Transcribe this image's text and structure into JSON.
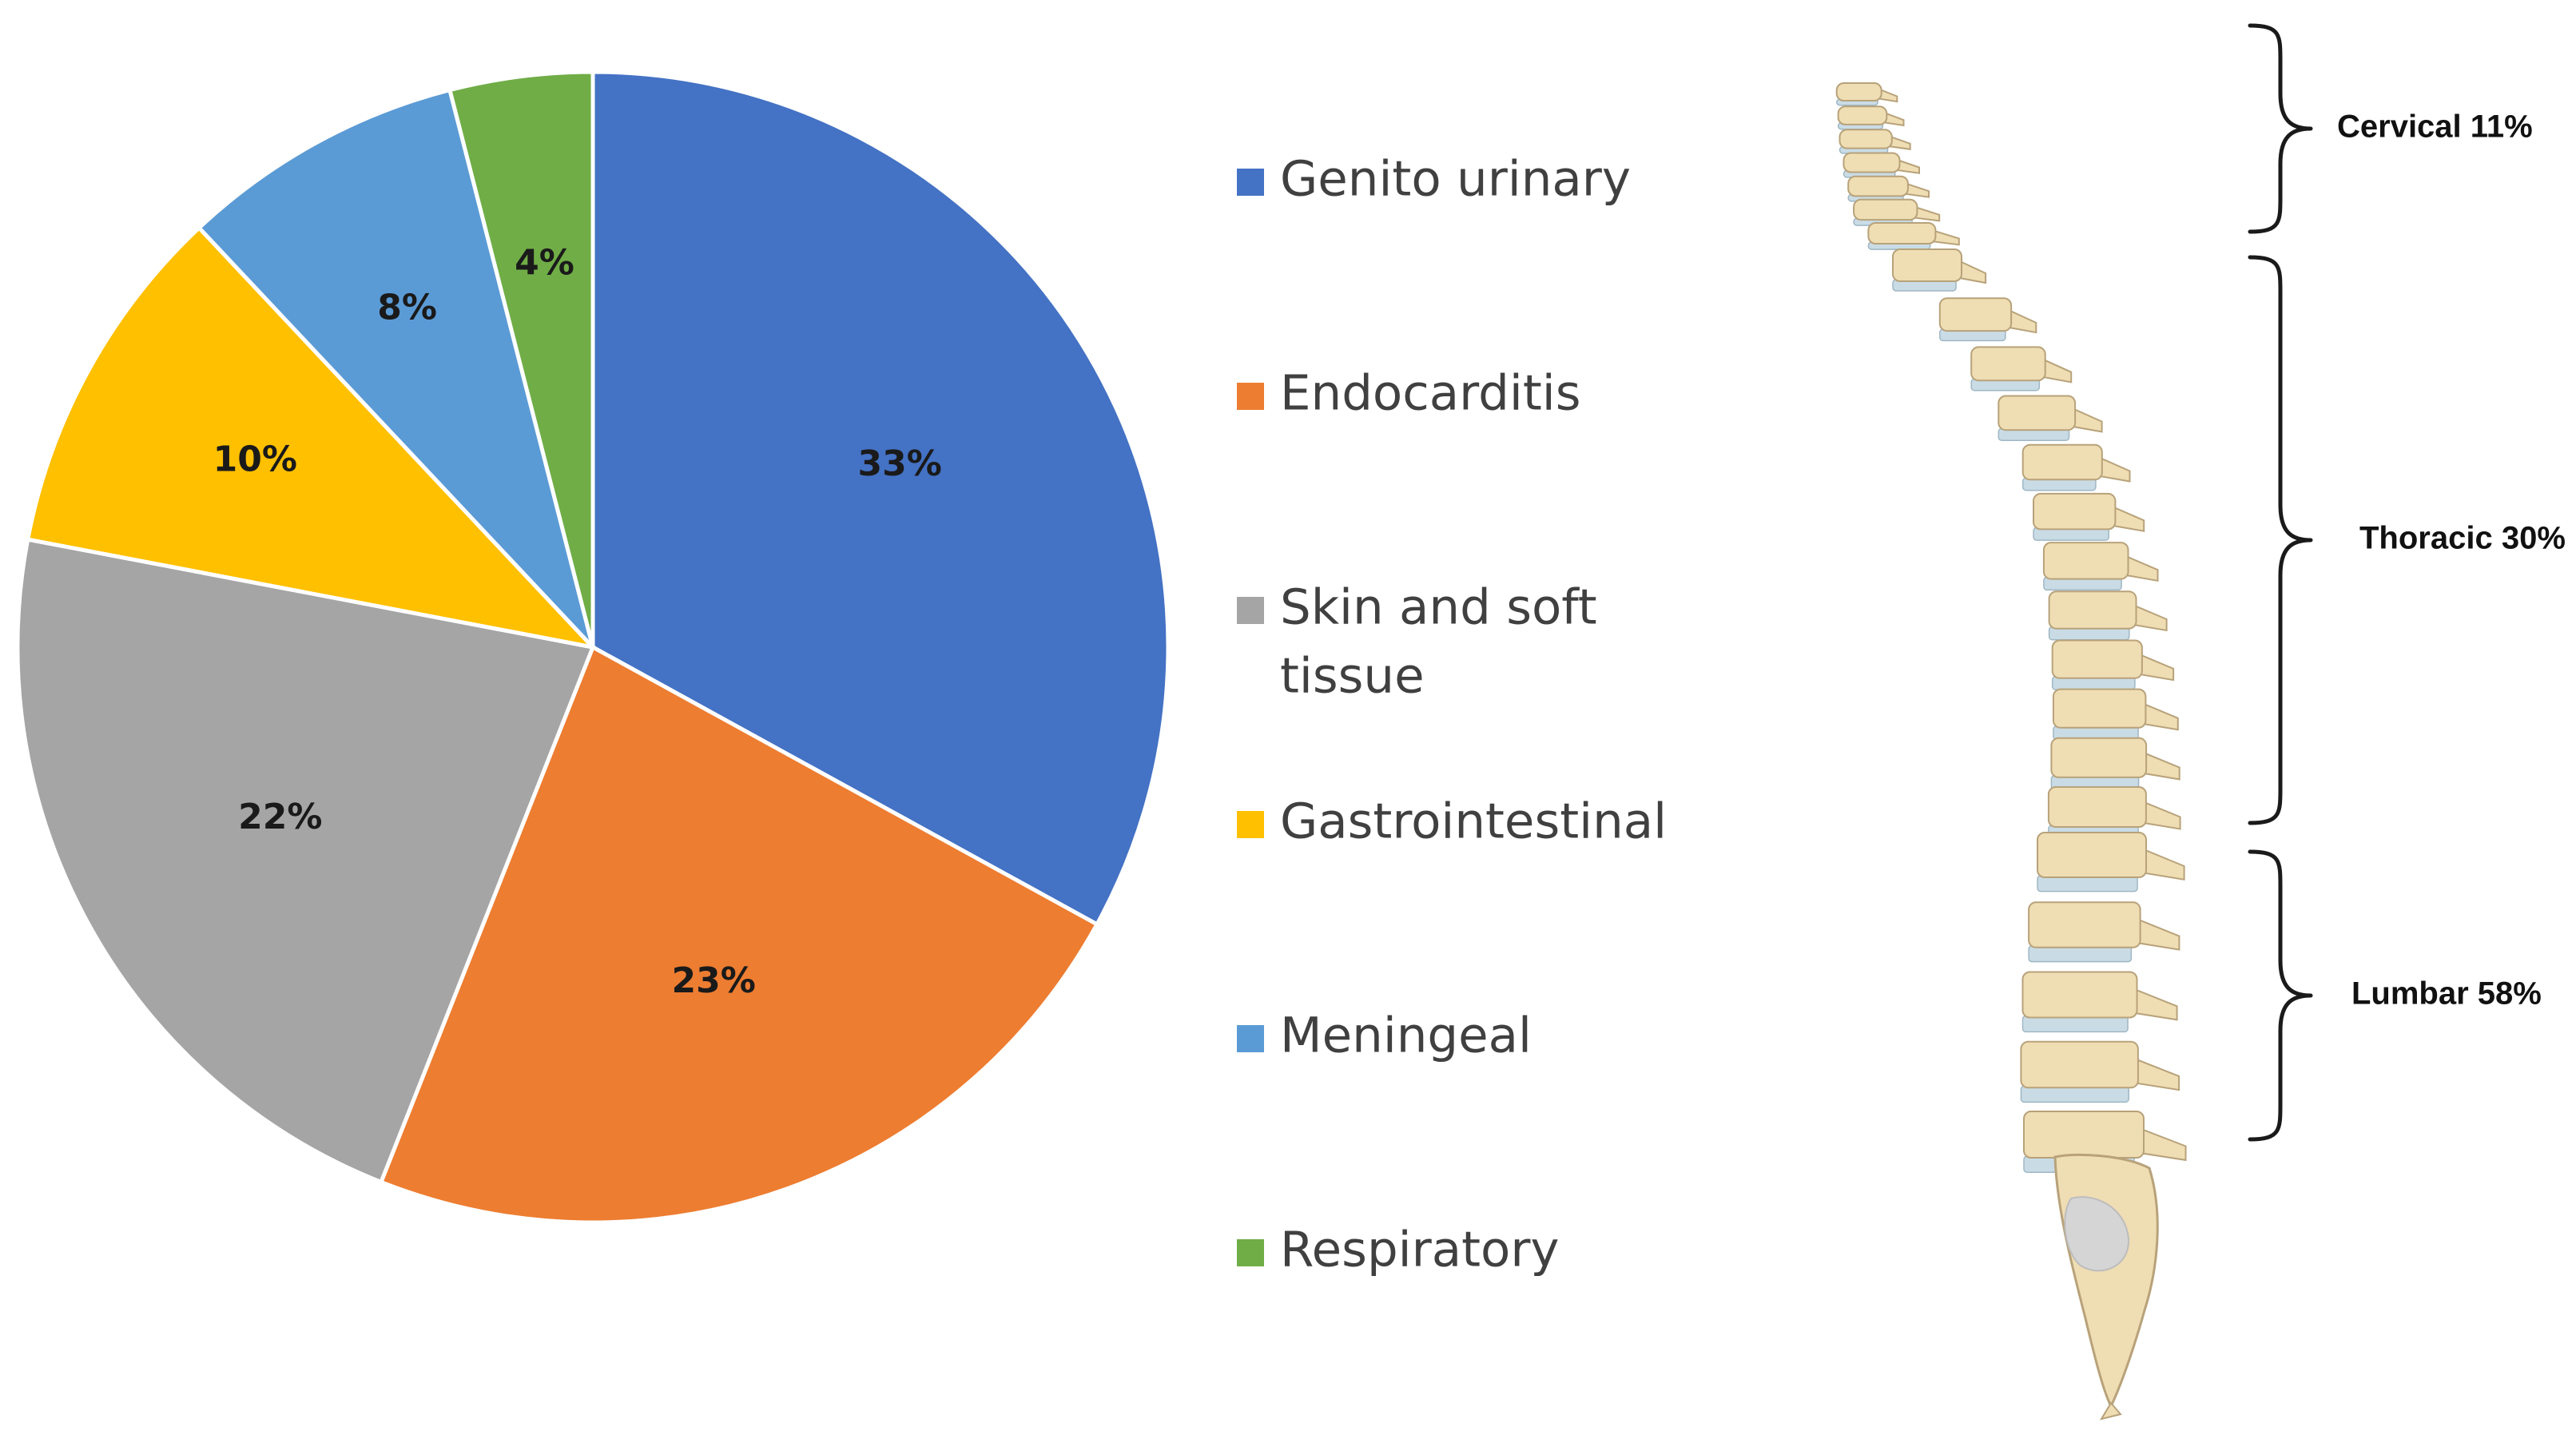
{
  "chart_data": {
    "type": "pie",
    "categories": [
      "Genito urinary",
      "Endocarditis",
      "Skin and soft tissue",
      "Gastrointestinal",
      "Meningeal",
      "Respiratory"
    ],
    "values": [
      33,
      23,
      22,
      10,
      8,
      4
    ],
    "value_labels": [
      "33%",
      "23%",
      "22%",
      "10%",
      "8%",
      "4%"
    ],
    "colors": [
      "#4472C4",
      "#ED7D31",
      "#A5A5A5",
      "#FFC000",
      "#5B9BD5",
      "#70AD47"
    ],
    "title": "",
    "legend_position": "right"
  },
  "legend": {
    "items": [
      {
        "label_lines": [
          "Genito urinary"
        ],
        "color": "#4472C4"
      },
      {
        "label_lines": [
          "Endocarditis"
        ],
        "color": "#ED7D31"
      },
      {
        "label_lines": [
          "Skin and soft",
          "tissue"
        ],
        "color": "#A5A5A5"
      },
      {
        "label_lines": [
          "Gastrointestinal"
        ],
        "color": "#FFC000"
      },
      {
        "label_lines": [
          "Meningeal"
        ],
        "color": "#5B9BD5"
      },
      {
        "label_lines": [
          "Respiratory"
        ],
        "color": "#70AD47"
      }
    ]
  },
  "spine_diagram": {
    "regions": [
      {
        "label": "Cervical 11%",
        "value": 11
      },
      {
        "label": "Thoracic 30%",
        "value": 30
      },
      {
        "label": "Lumbar 58%",
        "value": 58
      }
    ],
    "bone_color": "#EFDDB4",
    "disc_color": "#C9DCE6",
    "outline_color": "#B8A27A"
  }
}
